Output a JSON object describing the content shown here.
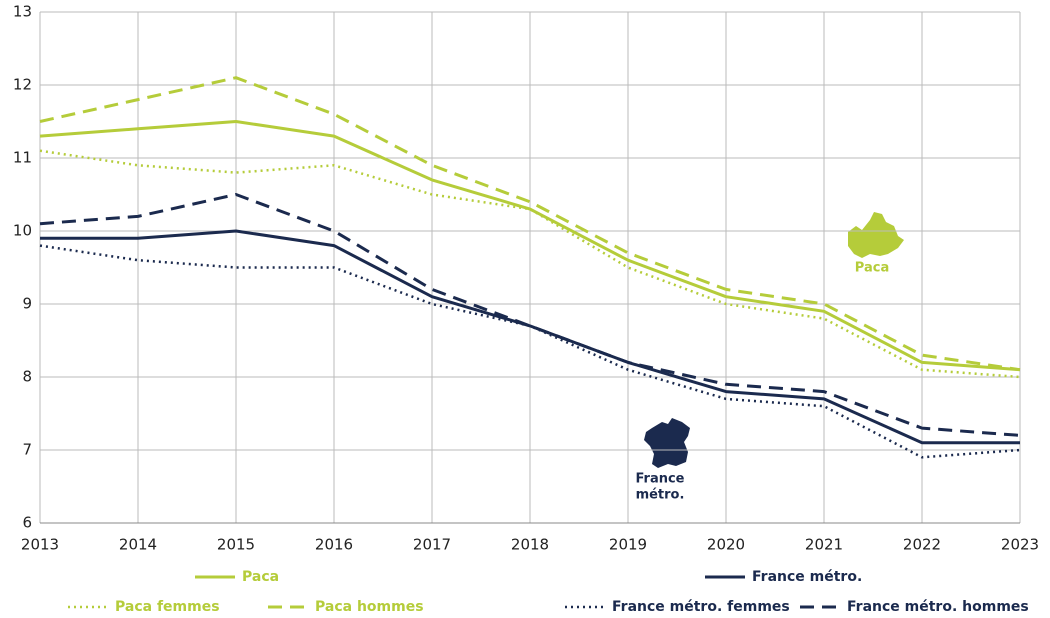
{
  "chart_data": {
    "type": "line",
    "categories": [
      "2013",
      "2014",
      "2015",
      "2016",
      "2017",
      "2018",
      "2019",
      "2020",
      "2021",
      "2022",
      "2023"
    ],
    "ylim": [
      6,
      13
    ],
    "yticks": [
      6,
      7,
      8,
      9,
      10,
      11,
      12,
      13
    ],
    "grid": true,
    "series": [
      {
        "name": "Paca",
        "color": "#b5cc3a",
        "dash": "solid",
        "values": [
          11.3,
          11.4,
          11.5,
          11.3,
          10.7,
          10.3,
          9.6,
          9.1,
          8.9,
          8.2,
          8.1
        ]
      },
      {
        "name": "France métro.",
        "color": "#1b2a4e",
        "dash": "solid",
        "values": [
          9.9,
          9.9,
          10.0,
          9.8,
          9.1,
          8.7,
          8.2,
          7.8,
          7.7,
          7.1,
          7.1
        ]
      },
      {
        "name": "Paca femmes",
        "color": "#b5cc3a",
        "dash": "dotted",
        "values": [
          11.1,
          10.9,
          10.8,
          10.9,
          10.5,
          10.3,
          9.5,
          9.0,
          8.8,
          8.1,
          8.0
        ]
      },
      {
        "name": "Paca  hommes",
        "color": "#b5cc3a",
        "dash": "dashed",
        "values": [
          11.5,
          11.8,
          12.1,
          11.6,
          10.9,
          10.4,
          9.7,
          9.2,
          9.0,
          8.3,
          8.1
        ]
      },
      {
        "name": "France métro. femmes",
        "color": "#1b2a4e",
        "dash": "dotted",
        "values": [
          9.8,
          9.6,
          9.5,
          9.5,
          9.0,
          8.7,
          8.1,
          7.7,
          7.6,
          6.9,
          7.0
        ]
      },
      {
        "name": "France métro. hommes",
        "color": "#1b2a4e",
        "dash": "dashed",
        "values": [
          10.1,
          10.2,
          10.5,
          10.0,
          9.2,
          8.7,
          8.2,
          7.9,
          7.8,
          7.3,
          7.2
        ]
      }
    ],
    "annotations": [
      "Paca",
      "France",
      "métro."
    ]
  }
}
